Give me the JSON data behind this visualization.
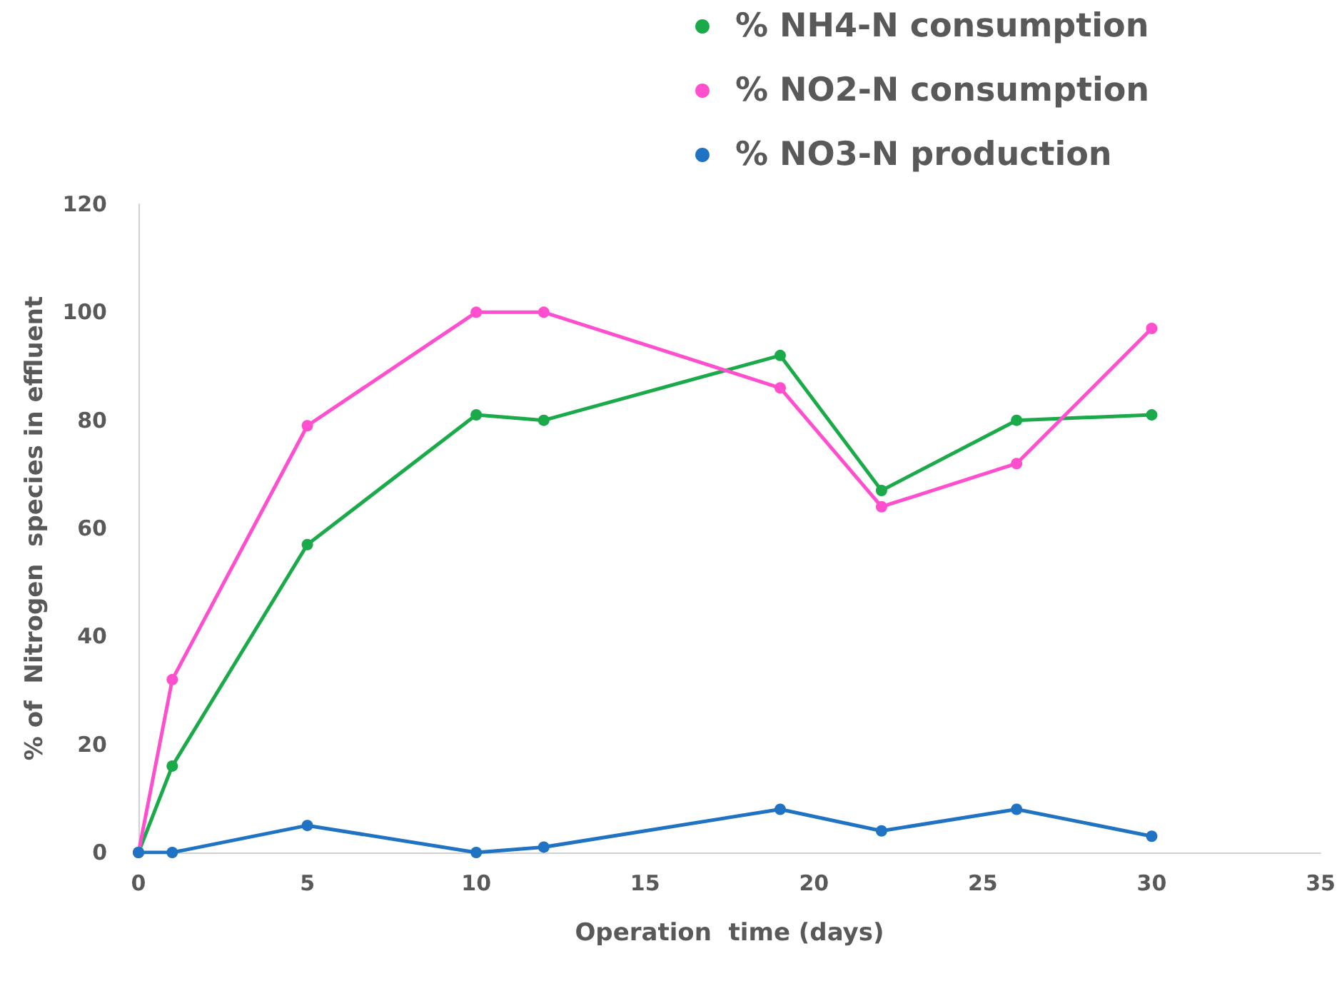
{
  "chart_data": {
    "type": "line",
    "xlabel": "Operation  time (days)",
    "ylabel": "% of  Nitrogen  species in effluent",
    "x": [
      0,
      1,
      5,
      10,
      12,
      19,
      22,
      26,
      30
    ],
    "series": [
      {
        "name": "% NH4-N consumption",
        "color": "#1aaa4a",
        "values": [
          0,
          16,
          57,
          81,
          80,
          92,
          67,
          80,
          81
        ]
      },
      {
        "name": "% NO2-N consumption",
        "color": "#ff4fcf",
        "values": [
          0,
          32,
          79,
          100,
          100,
          86,
          64,
          72,
          97
        ]
      },
      {
        "name": "% NO3-N production",
        "color": "#1f73c2",
        "values": [
          0,
          0,
          5,
          0,
          1,
          8,
          4,
          8,
          3
        ]
      }
    ],
    "xlim": [
      0,
      35
    ],
    "xticks": [
      0,
      5,
      10,
      15,
      20,
      25,
      30,
      35
    ],
    "ylim": [
      0,
      120
    ],
    "yticks": [
      0,
      20,
      40,
      60,
      80,
      100,
      120
    ],
    "grid": false,
    "legend": "top right",
    "marker": "circle",
    "line_style": "solid"
  }
}
